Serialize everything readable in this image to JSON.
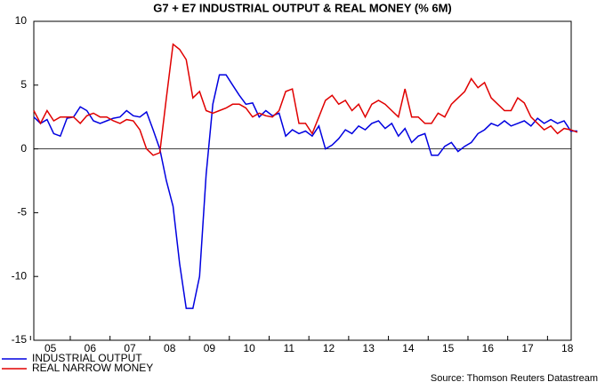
{
  "chart_data": {
    "type": "line",
    "title": "G7 + E7 INDUSTRIAL OUTPUT & REAL MONEY (% 6M)",
    "source": "Source: Thomson Reuters Datastream",
    "categories": [
      null,
      null,
      null,
      "05",
      null,
      null,
      null,
      null,
      null,
      "06",
      null,
      null,
      null,
      null,
      null,
      "07",
      null,
      null,
      null,
      null,
      null,
      "08",
      null,
      null,
      null,
      null,
      null,
      "09",
      null,
      null,
      null,
      null,
      null,
      "10",
      null,
      null,
      null,
      null,
      null,
      "11",
      null,
      null,
      null,
      null,
      null,
      "12",
      null,
      null,
      null,
      null,
      null,
      "13",
      null,
      null,
      null,
      null,
      null,
      "14",
      null,
      null,
      null,
      null,
      null,
      "15",
      null,
      null,
      null,
      null,
      null,
      "16",
      null,
      null,
      null,
      null,
      null,
      "17",
      null,
      null,
      null,
      null,
      null,
      "18",
      null
    ],
    "series": [
      {
        "name": "INDUSTRIAL OUTPUT",
        "color": "#0000e0",
        "values": [
          2.5,
          2.0,
          2.3,
          1.2,
          1.0,
          2.4,
          2.5,
          3.3,
          3.0,
          2.2,
          2.0,
          2.2,
          2.4,
          2.5,
          3.0,
          2.6,
          2.5,
          2.9,
          1.5,
          0.0,
          -2.5,
          -4.5,
          -9.0,
          -12.5,
          -12.5,
          -10.0,
          -2.0,
          3.5,
          5.8,
          5.8,
          5.0,
          4.2,
          3.5,
          3.6,
          2.5,
          3.0,
          2.6,
          2.8,
          1.0,
          1.5,
          1.2,
          1.4,
          1.0,
          1.8,
          0.0,
          0.3,
          0.8,
          1.5,
          1.2,
          1.8,
          1.5,
          2.0,
          2.2,
          1.6,
          2.0,
          1.0,
          1.6,
          0.5,
          1.0,
          1.2,
          -0.5,
          -0.5,
          0.2,
          0.5,
          -0.2,
          0.2,
          0.5,
          1.2,
          1.5,
          2.0,
          1.8,
          2.2,
          1.8,
          2.0,
          2.2,
          1.8,
          2.4,
          2.0,
          2.3,
          2.0,
          2.2,
          1.4,
          1.4
        ]
      },
      {
        "name": "REAL NARROW MONEY",
        "color": "#e00000",
        "values": [
          3.0,
          2.0,
          3.0,
          2.2,
          2.5,
          2.5,
          2.5,
          2.0,
          2.6,
          2.8,
          2.5,
          2.5,
          2.2,
          2.0,
          2.3,
          2.2,
          1.5,
          0.0,
          -0.5,
          -0.3,
          4.0,
          8.2,
          7.8,
          7.0,
          4.0,
          4.5,
          3.0,
          2.8,
          3.0,
          3.2,
          3.5,
          3.5,
          3.2,
          2.5,
          2.8,
          2.6,
          2.5,
          3.0,
          4.5,
          4.7,
          2.0,
          2.0,
          1.2,
          2.5,
          3.8,
          4.2,
          3.5,
          3.8,
          3.0,
          3.5,
          2.5,
          3.5,
          3.8,
          3.5,
          3.0,
          2.5,
          4.7,
          2.5,
          2.5,
          2.0,
          2.0,
          2.8,
          2.5,
          3.5,
          4.0,
          4.5,
          5.5,
          4.8,
          5.2,
          4.0,
          3.5,
          3.0,
          3.0,
          4.0,
          3.6,
          2.5,
          2.0,
          1.5,
          1.8,
          1.2,
          1.6,
          1.5,
          1.3
        ]
      }
    ],
    "ylim": [
      -15,
      10
    ],
    "yticks": [
      -15,
      -10,
      -5,
      0,
      5,
      10
    ],
    "zero_line": true,
    "legend": "bottom-left"
  }
}
